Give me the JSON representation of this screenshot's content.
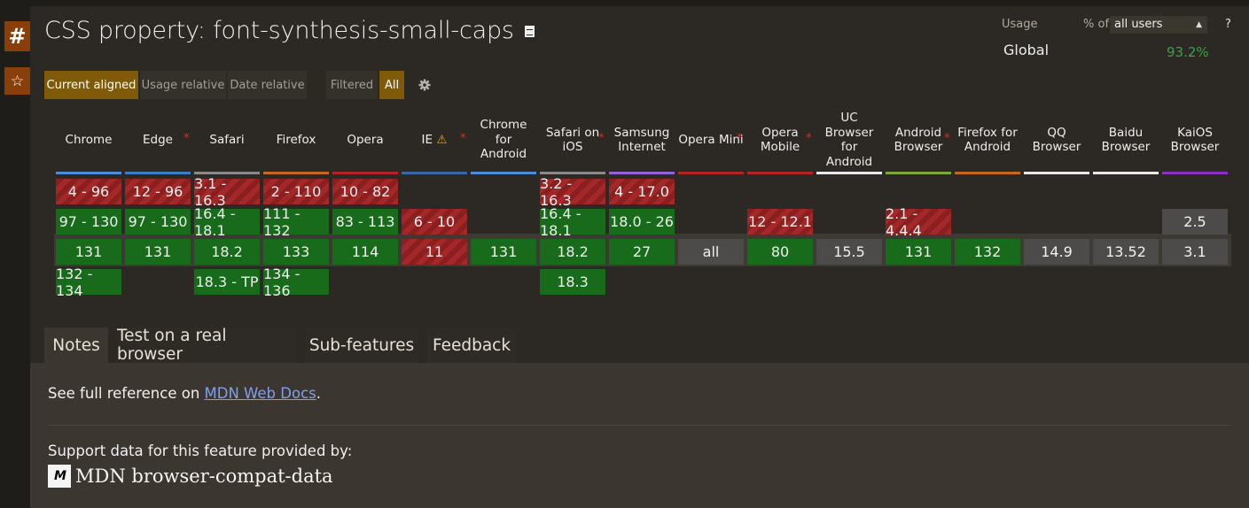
{
  "side": {
    "hash_label": "#",
    "star_label": "☆"
  },
  "title": "CSS property: font-synthesis-small-caps",
  "modes": {
    "current_aligned": "Current aligned",
    "usage_relative": "Usage relative",
    "date_relative": "Date relative"
  },
  "filter": {
    "filtered": "Filtered",
    "all": "All"
  },
  "usage": {
    "label": "Usage",
    "pct_of": "% of",
    "selected": "all users",
    "help": "?",
    "region": "Global",
    "value": "93.2%"
  },
  "browsers": [
    {
      "name": [
        "Chrome"
      ],
      "color": "#4b8dd9",
      "star": false,
      "cells": [
        {
          "r": 0,
          "t": "4 - 96",
          "s": "n"
        },
        {
          "r": 1,
          "t": "97 - 130",
          "s": "y"
        },
        {
          "r": 2,
          "t": "131",
          "s": "y"
        },
        {
          "r": 3,
          "t": "132 - 134",
          "s": "y"
        }
      ]
    },
    {
      "name": [
        "Edge"
      ],
      "color": "#3a7fc6",
      "star": true,
      "cells": [
        {
          "r": 0,
          "t": "12 - 96",
          "s": "n"
        },
        {
          "r": 1,
          "t": "97 - 130",
          "s": "y"
        },
        {
          "r": 2,
          "t": "131",
          "s": "y"
        }
      ]
    },
    {
      "name": [
        "Safari"
      ],
      "color": "#8a8a8a",
      "star": false,
      "cells": [
        {
          "r": 0,
          "t": "3.1 - 16.3",
          "s": "n"
        },
        {
          "r": 1,
          "t": "16.4 - 18.1",
          "s": "y"
        },
        {
          "r": 2,
          "t": "18.2",
          "s": "y"
        },
        {
          "r": 3,
          "t": "18.3 - TP",
          "s": "y"
        }
      ]
    },
    {
      "name": [
        "Firefox"
      ],
      "color": "#c7681f",
      "star": false,
      "cells": [
        {
          "r": 0,
          "t": "2 - 110",
          "s": "n"
        },
        {
          "r": 1,
          "t": "111 - 132",
          "s": "y"
        },
        {
          "r": 2,
          "t": "133",
          "s": "y"
        },
        {
          "r": 3,
          "t": "134 - 136",
          "s": "y"
        }
      ]
    },
    {
      "name": [
        "Opera"
      ],
      "color": "#b32424",
      "star": false,
      "cells": [
        {
          "r": 0,
          "t": "10 - 82",
          "s": "n"
        },
        {
          "r": 1,
          "t": "83 - 113",
          "s": "y"
        },
        {
          "r": 2,
          "t": "114",
          "s": "y"
        }
      ]
    },
    {
      "name": [
        "IE"
      ],
      "color": "#3569a8",
      "star": true,
      "warn": true,
      "cells": [
        {
          "r": 1,
          "t": "6 - 10",
          "s": "n"
        },
        {
          "r": 2,
          "t": "11",
          "s": "n"
        }
      ]
    },
    {
      "name": [
        "Chrome",
        "for",
        "Android"
      ],
      "color": "#4b8dd9",
      "star": false,
      "cells": [
        {
          "r": 2,
          "t": "131",
          "s": "y"
        }
      ]
    },
    {
      "name": [
        "Safari on",
        "iOS"
      ],
      "color": "#8a8a8a",
      "star": true,
      "cells": [
        {
          "r": 0,
          "t": "3.2 - 16.3",
          "s": "n"
        },
        {
          "r": 1,
          "t": "16.4 - 18.1",
          "s": "y"
        },
        {
          "r": 2,
          "t": "18.2",
          "s": "y"
        },
        {
          "r": 3,
          "t": "18.3",
          "s": "y"
        }
      ]
    },
    {
      "name": [
        "Samsung",
        "Internet"
      ],
      "color": "#9063d9",
      "star": false,
      "cells": [
        {
          "r": 0,
          "t": "4 - 17.0",
          "s": "n"
        },
        {
          "r": 1,
          "t": "18.0 - 26",
          "s": "y"
        },
        {
          "r": 2,
          "t": "27",
          "s": "y"
        }
      ]
    },
    {
      "name": [
        "Opera Mini"
      ],
      "color": "#b32424",
      "star": true,
      "cells": [
        {
          "r": 2,
          "t": "all",
          "s": "u"
        }
      ]
    },
    {
      "name": [
        "Opera",
        "Mobile"
      ],
      "color": "#b32424",
      "star": true,
      "cells": [
        {
          "r": 1,
          "t": "12 - 12.1",
          "s": "n"
        },
        {
          "r": 2,
          "t": "80",
          "s": "y"
        }
      ]
    },
    {
      "name": [
        "UC",
        "Browser",
        "for",
        "Android"
      ],
      "color": "#e8e8e8",
      "star": false,
      "cells": [
        {
          "r": 2,
          "t": "15.5",
          "s": "u"
        }
      ]
    },
    {
      "name": [
        "Android",
        "Browser"
      ],
      "color": "#7ca83a",
      "star": true,
      "cells": [
        {
          "r": 1,
          "t": "2.1 - 4.4.4",
          "s": "n"
        },
        {
          "r": 2,
          "t": "131",
          "s": "y"
        }
      ]
    },
    {
      "name": [
        "Firefox for",
        "Android"
      ],
      "color": "#c7681f",
      "star": false,
      "cells": [
        {
          "r": 2,
          "t": "132",
          "s": "y"
        }
      ]
    },
    {
      "name": [
        "QQ",
        "Browser"
      ],
      "color": "#e8e8e8",
      "star": false,
      "cells": [
        {
          "r": 2,
          "t": "14.9",
          "s": "u"
        }
      ]
    },
    {
      "name": [
        "Baidu",
        "Browser"
      ],
      "color": "#e8e8e8",
      "star": false,
      "cells": [
        {
          "r": 2,
          "t": "13.52",
          "s": "u"
        }
      ]
    },
    {
      "name": [
        "KaiOS",
        "Browser"
      ],
      "color": "#8a2fc2",
      "star": false,
      "cells": [
        {
          "r": 1,
          "t": "2.5",
          "s": "u"
        },
        {
          "r": 2,
          "t": "3.1",
          "s": "u"
        }
      ]
    }
  ],
  "tabs": {
    "notes": "Notes",
    "test": "Test on a real browser",
    "sub": "Sub-features",
    "feedback": "Feedback"
  },
  "notes": {
    "prefix": "See full reference on ",
    "link": "MDN Web Docs",
    "suffix": "."
  },
  "support": {
    "text": "Support data for this feature provided by:",
    "logo": "M",
    "mdn_label": "MDN browser-compat-data"
  }
}
